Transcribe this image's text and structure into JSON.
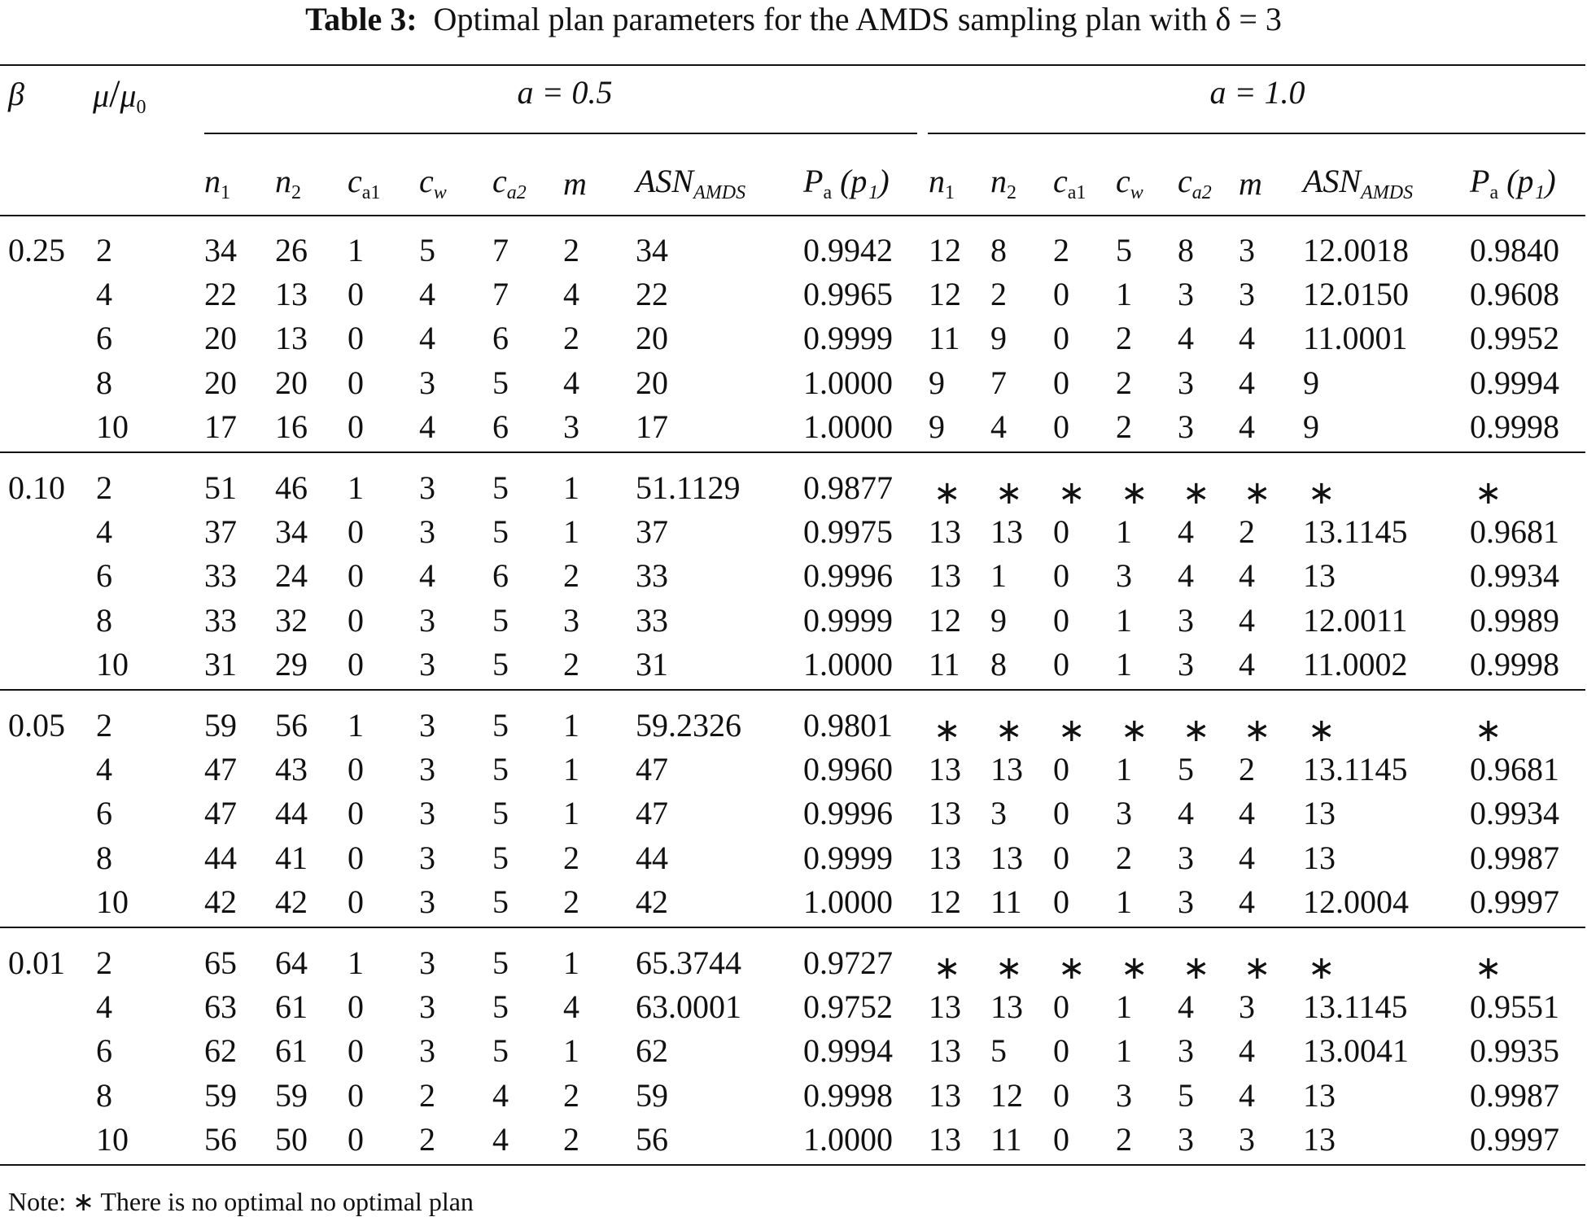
{
  "title": {
    "label": "Table 3:",
    "text": "Optimal plan parameters for the AMDS sampling plan with δ = 3"
  },
  "header": {
    "beta": "β",
    "ratio": {
      "base": "μ",
      "slash": "/",
      "den": "μ",
      "den_sub": "0"
    },
    "groups": [
      "a = 0.5",
      "a = 1.0"
    ],
    "columns": [
      {
        "base": "n",
        "sub": "1"
      },
      {
        "base": "n",
        "sub": "2"
      },
      {
        "base": "c",
        "sub": "a1"
      },
      {
        "base": "c",
        "sub": "w"
      },
      {
        "base": "c",
        "sub": "a2"
      },
      {
        "base": "m",
        "sub": ""
      },
      {
        "base": "ASN",
        "sub": "AMDS"
      },
      {
        "base": "P",
        "sub": "a",
        "tail": " (p₁)"
      }
    ]
  },
  "table": {
    "groups": [
      {
        "beta": "0.25",
        "rows": [
          [
            "2",
            "34",
            "26",
            "1",
            "5",
            "7",
            "2",
            "34",
            "0.9942",
            "12",
            "8",
            "2",
            "5",
            "8",
            "3",
            "12.0018",
            "0.9840"
          ],
          [
            "4",
            "22",
            "13",
            "0",
            "4",
            "7",
            "4",
            "22",
            "0.9965",
            "12",
            "2",
            "0",
            "1",
            "3",
            "3",
            "12.0150",
            "0.9608"
          ],
          [
            "6",
            "20",
            "13",
            "0",
            "4",
            "6",
            "2",
            "20",
            "0.9999",
            "11",
            "9",
            "0",
            "2",
            "4",
            "4",
            "11.0001",
            "0.9952"
          ],
          [
            "8",
            "20",
            "20",
            "0",
            "3",
            "5",
            "4",
            "20",
            "1.0000",
            "9",
            "7",
            "0",
            "2",
            "3",
            "4",
            "9",
            "0.9994"
          ],
          [
            "10",
            "17",
            "16",
            "0",
            "4",
            "6",
            "3",
            "17",
            "1.0000",
            "9",
            "4",
            "0",
            "2",
            "3",
            "4",
            "9",
            "0.9998"
          ]
        ]
      },
      {
        "beta": "0.10",
        "rows": [
          [
            "2",
            "51",
            "46",
            "1",
            "3",
            "5",
            "1",
            "51.1129",
            "0.9877",
            "∗",
            "∗",
            "∗",
            "∗",
            "∗",
            "∗",
            "∗",
            "∗"
          ],
          [
            "4",
            "37",
            "34",
            "0",
            "3",
            "5",
            "1",
            "37",
            "0.9975",
            "13",
            "13",
            "0",
            "1",
            "4",
            "2",
            "13.1145",
            "0.9681"
          ],
          [
            "6",
            "33",
            "24",
            "0",
            "4",
            "6",
            "2",
            "33",
            "0.9996",
            "13",
            "1",
            "0",
            "3",
            "4",
            "4",
            "13",
            "0.9934"
          ],
          [
            "8",
            "33",
            "32",
            "0",
            "3",
            "5",
            "3",
            "33",
            "0.9999",
            "12",
            "9",
            "0",
            "1",
            "3",
            "4",
            "12.0011",
            "0.9989"
          ],
          [
            "10",
            "31",
            "29",
            "0",
            "3",
            "5",
            "2",
            "31",
            "1.0000",
            "11",
            "8",
            "0",
            "1",
            "3",
            "4",
            "11.0002",
            "0.9998"
          ]
        ]
      },
      {
        "beta": "0.05",
        "rows": [
          [
            "2",
            "59",
            "56",
            "1",
            "3",
            "5",
            "1",
            "59.2326",
            "0.9801",
            "∗",
            "∗",
            "∗",
            "∗",
            "∗",
            "∗",
            "∗",
            "∗"
          ],
          [
            "4",
            "47",
            "43",
            "0",
            "3",
            "5",
            "1",
            "47",
            "0.9960",
            "13",
            "13",
            "0",
            "1",
            "5",
            "2",
            "13.1145",
            "0.9681"
          ],
          [
            "6",
            "47",
            "44",
            "0",
            "3",
            "5",
            "1",
            "47",
            "0.9996",
            "13",
            "3",
            "0",
            "3",
            "4",
            "4",
            "13",
            "0.9934"
          ],
          [
            "8",
            "44",
            "41",
            "0",
            "3",
            "5",
            "2",
            "44",
            "0.9999",
            "13",
            "13",
            "0",
            "2",
            "3",
            "4",
            "13",
            "0.9987"
          ],
          [
            "10",
            "42",
            "42",
            "0",
            "3",
            "5",
            "2",
            "42",
            "1.0000",
            "12",
            "11",
            "0",
            "1",
            "3",
            "4",
            "12.0004",
            "0.9997"
          ]
        ]
      },
      {
        "beta": "0.01",
        "rows": [
          [
            "2",
            "65",
            "64",
            "1",
            "3",
            "5",
            "1",
            "65.3744",
            "0.9727",
            "∗",
            "∗",
            "∗",
            "∗",
            "∗",
            "∗",
            "∗",
            "∗"
          ],
          [
            "4",
            "63",
            "61",
            "0",
            "3",
            "5",
            "4",
            "63.0001",
            "0.9752",
            "13",
            "13",
            "0",
            "1",
            "4",
            "3",
            "13.1145",
            "0.9551"
          ],
          [
            "6",
            "62",
            "61",
            "0",
            "3",
            "5",
            "1",
            "62",
            "0.9994",
            "13",
            "5",
            "0",
            "1",
            "3",
            "4",
            "13.0041",
            "0.9935"
          ],
          [
            "8",
            "59",
            "59",
            "0",
            "2",
            "4",
            "2",
            "59",
            "0.9998",
            "13",
            "12",
            "0",
            "3",
            "5",
            "4",
            "13",
            "0.9987"
          ],
          [
            "10",
            "56",
            "50",
            "0",
            "2",
            "4",
            "2",
            "56",
            "1.0000",
            "13",
            "11",
            "0",
            "2",
            "3",
            "3",
            "13",
            "0.9997"
          ]
        ]
      }
    ]
  },
  "note": "Note: ∗ There is no optimal no optimal plan"
}
